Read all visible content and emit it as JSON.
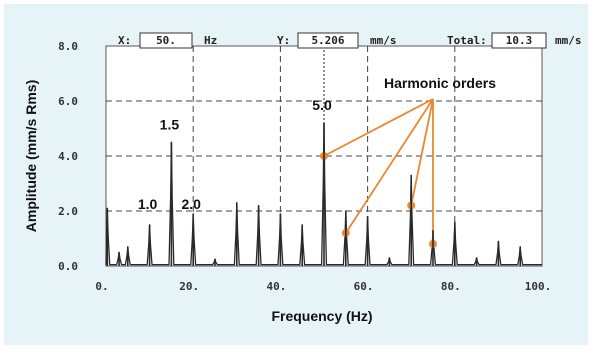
{
  "readout": {
    "x_label": "X:",
    "x_value": "50.",
    "x_unit": "Hz",
    "y_label": "Y:",
    "y_value": "5.206",
    "y_unit": "mm/s",
    "total_label": "Total:",
    "total_value": "10.3",
    "total_unit": "mm/s"
  },
  "colors": {
    "background": "#e6f4f7",
    "plot_bg": "#ffffff",
    "spectrum": "#2a2a2a",
    "annotation": "#e8872f",
    "grid": "#444444"
  },
  "chart_data": {
    "type": "line",
    "xlabel": "Frequency (Hz)",
    "ylabel": "Amplitude (mm/s Rms)",
    "xlim": [
      0,
      100
    ],
    "ylim": [
      0,
      8
    ],
    "grid": true,
    "x_ticks": [
      0,
      20,
      40,
      60,
      80,
      100
    ],
    "x_tick_labels": [
      "0.",
      "20.",
      "40.",
      "60.",
      "80.",
      "100."
    ],
    "y_ticks": [
      0,
      2,
      4,
      6,
      8
    ],
    "y_tick_labels": [
      "0.0",
      "2.0",
      "4.0",
      "6.0",
      "8.0"
    ],
    "cursor_x": 50,
    "peaks": [
      {
        "x": 0.3,
        "y": 2.1
      },
      {
        "x": 3,
        "y": 0.5
      },
      {
        "x": 5,
        "y": 0.7
      },
      {
        "x": 10,
        "y": 1.5
      },
      {
        "x": 15,
        "y": 4.5
      },
      {
        "x": 20,
        "y": 1.9
      },
      {
        "x": 25,
        "y": 0.25
      },
      {
        "x": 30,
        "y": 2.3
      },
      {
        "x": 35,
        "y": 2.2
      },
      {
        "x": 40,
        "y": 1.9
      },
      {
        "x": 45,
        "y": 1.5
      },
      {
        "x": 50,
        "y": 5.2
      },
      {
        "x": 55,
        "y": 2.0
      },
      {
        "x": 60,
        "y": 1.8
      },
      {
        "x": 65,
        "y": 0.3
      },
      {
        "x": 70,
        "y": 3.3
      },
      {
        "x": 75,
        "y": 1.3
      },
      {
        "x": 80,
        "y": 1.6
      },
      {
        "x": 85,
        "y": 0.3
      },
      {
        "x": 90,
        "y": 0.9
      },
      {
        "x": 95,
        "y": 0.7
      }
    ],
    "order_labels": [
      {
        "text": "1.0",
        "x": 10,
        "y": 2.0
      },
      {
        "text": "1.5",
        "x": 15,
        "y": 4.9
      },
      {
        "text": "2.0",
        "x": 20,
        "y": 2.0
      },
      {
        "text": "5.0",
        "x": 50,
        "y": 5.6
      }
    ],
    "annotation": {
      "text": "Harmonic orders",
      "points": [
        {
          "x": 50,
          "y": 4.0
        },
        {
          "x": 55,
          "y": 1.2
        },
        {
          "x": 70,
          "y": 2.2
        },
        {
          "x": 75,
          "y": 0.8
        }
      ]
    }
  }
}
